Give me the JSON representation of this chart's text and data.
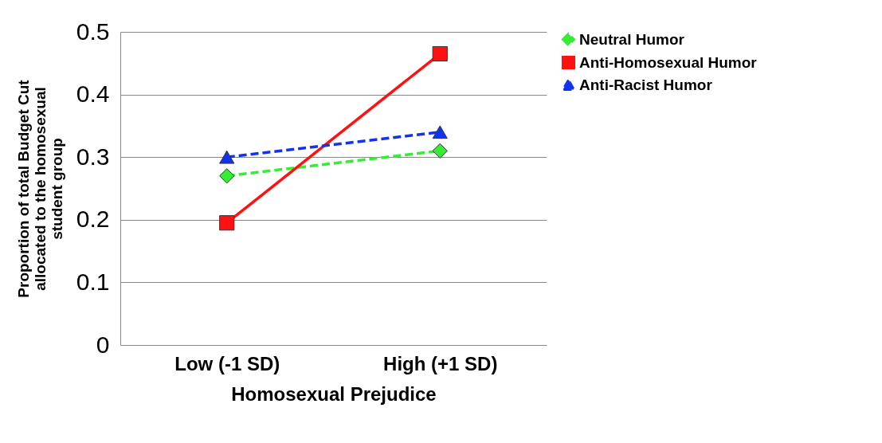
{
  "chart_data": {
    "type": "line",
    "xlabel": "Homosexual Prejudice",
    "ylabel": "Proportion of total Budget Cut allocated to the homosexual student group",
    "categories": [
      "Low (-1 SD)",
      "High (+1 SD)"
    ],
    "series": [
      {
        "name": "Neutral Humor",
        "color": "#33ee33",
        "values": [
          0.27,
          0.31
        ],
        "marker": "diamond",
        "line_style": "dashed"
      },
      {
        "name": "Anti-Homosexual Humor",
        "color": "#ff1111",
        "values": [
          0.195,
          0.465
        ],
        "marker": "square",
        "line_style": "solid"
      },
      {
        "name": "Anti-Racist Humor",
        "color": "#1133ee",
        "values": [
          0.3,
          0.34
        ],
        "marker": "triangle",
        "line_style": "dashed"
      }
    ],
    "ylim": [
      0,
      0.5
    ],
    "yticks": [
      0,
      0.1,
      0.2,
      0.3,
      0.4,
      0.5
    ],
    "grid": "y",
    "legend": "right"
  }
}
